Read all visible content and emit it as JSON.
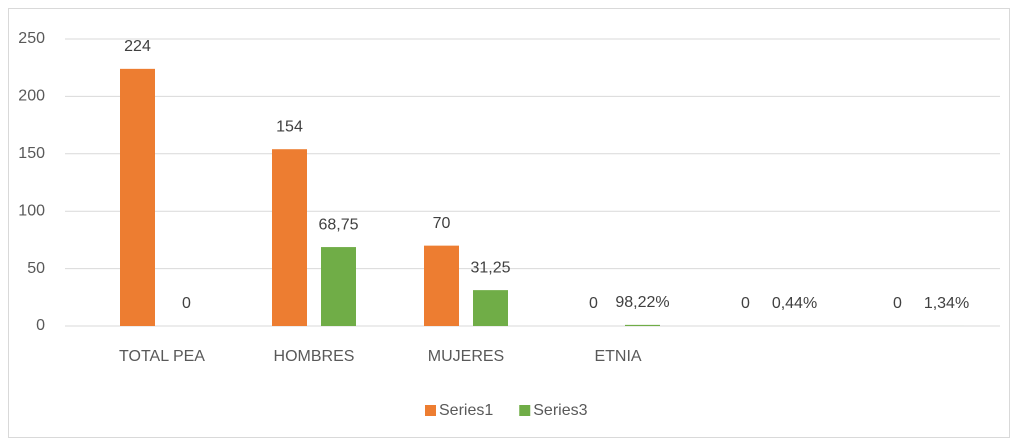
{
  "chart_data": {
    "type": "bar",
    "categories": [
      "TOTAL PEA",
      "HOMBRES",
      "MUJERES",
      "ETNIA",
      null,
      null
    ],
    "series": [
      {
        "name": "Series1",
        "color": "#ed7d31",
        "values": [
          224,
          154,
          70,
          0,
          0,
          0
        ]
      },
      {
        "name": "Series3",
        "color": "#70ad47",
        "values": [
          0,
          68.75,
          31.25,
          0.9822,
          0.0044,
          0.0134
        ],
        "value_labels": [
          "0",
          "68,75",
          "31,25",
          "98,22%",
          "0,44%",
          "1,34%"
        ]
      }
    ],
    "ylim": [
      0,
      250
    ],
    "yticks": [
      0,
      50,
      100,
      150,
      200,
      250
    ],
    "grid": true,
    "legend": "bottom"
  }
}
